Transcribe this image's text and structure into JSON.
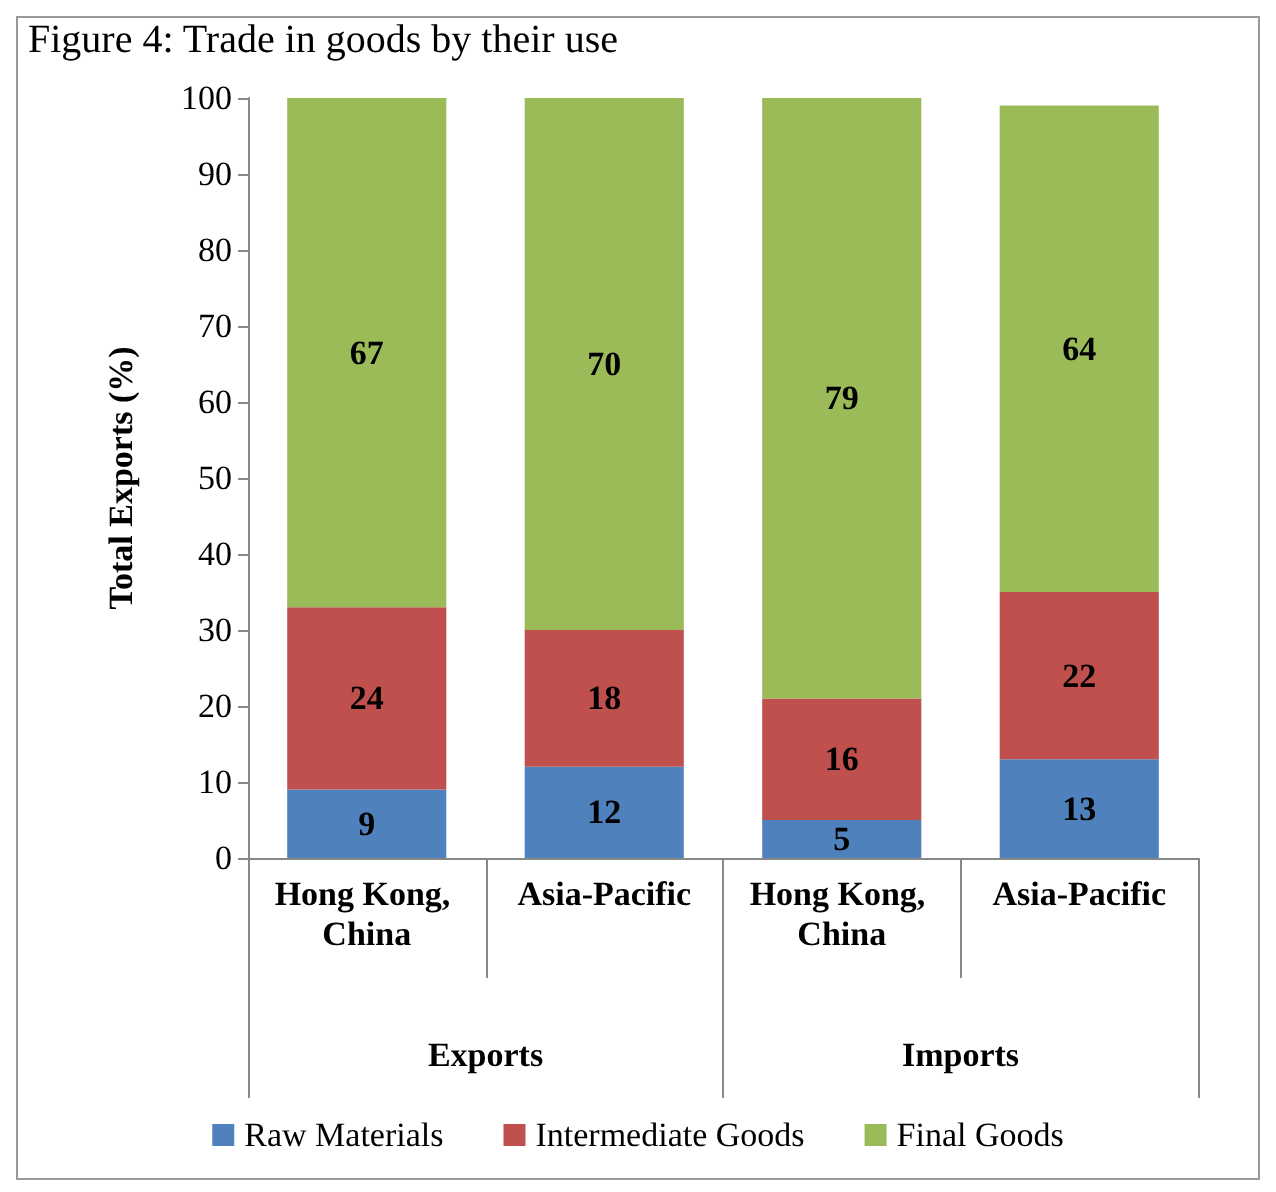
{
  "chart_data": {
    "type": "bar",
    "title": "Figure 4: Trade in goods by their use",
    "ylabel": "Total Exports (%)",
    "categories": [
      "Hong Kong, China",
      "Asia-Pacific",
      "Hong Kong, China",
      "Asia-Pacific"
    ],
    "annotations": [
      "Exports",
      "Imports"
    ],
    "series": [
      {
        "name": "Raw Materials",
        "color": "#4f81bd",
        "values": [
          9,
          12,
          5,
          13
        ]
      },
      {
        "name": "Intermediate Goods",
        "color": "#c0504d",
        "values": [
          24,
          18,
          16,
          22
        ]
      },
      {
        "name": "Final Goods",
        "color": "#9bbb59",
        "values": [
          67,
          70,
          79,
          64
        ]
      }
    ],
    "stacked": true,
    "data_labels": true,
    "ylim": [
      0,
      100
    ],
    "yticks": [
      0,
      10,
      20,
      30,
      40,
      50,
      60,
      70,
      80,
      90,
      100
    ],
    "grid": false,
    "legend": "bottom"
  }
}
